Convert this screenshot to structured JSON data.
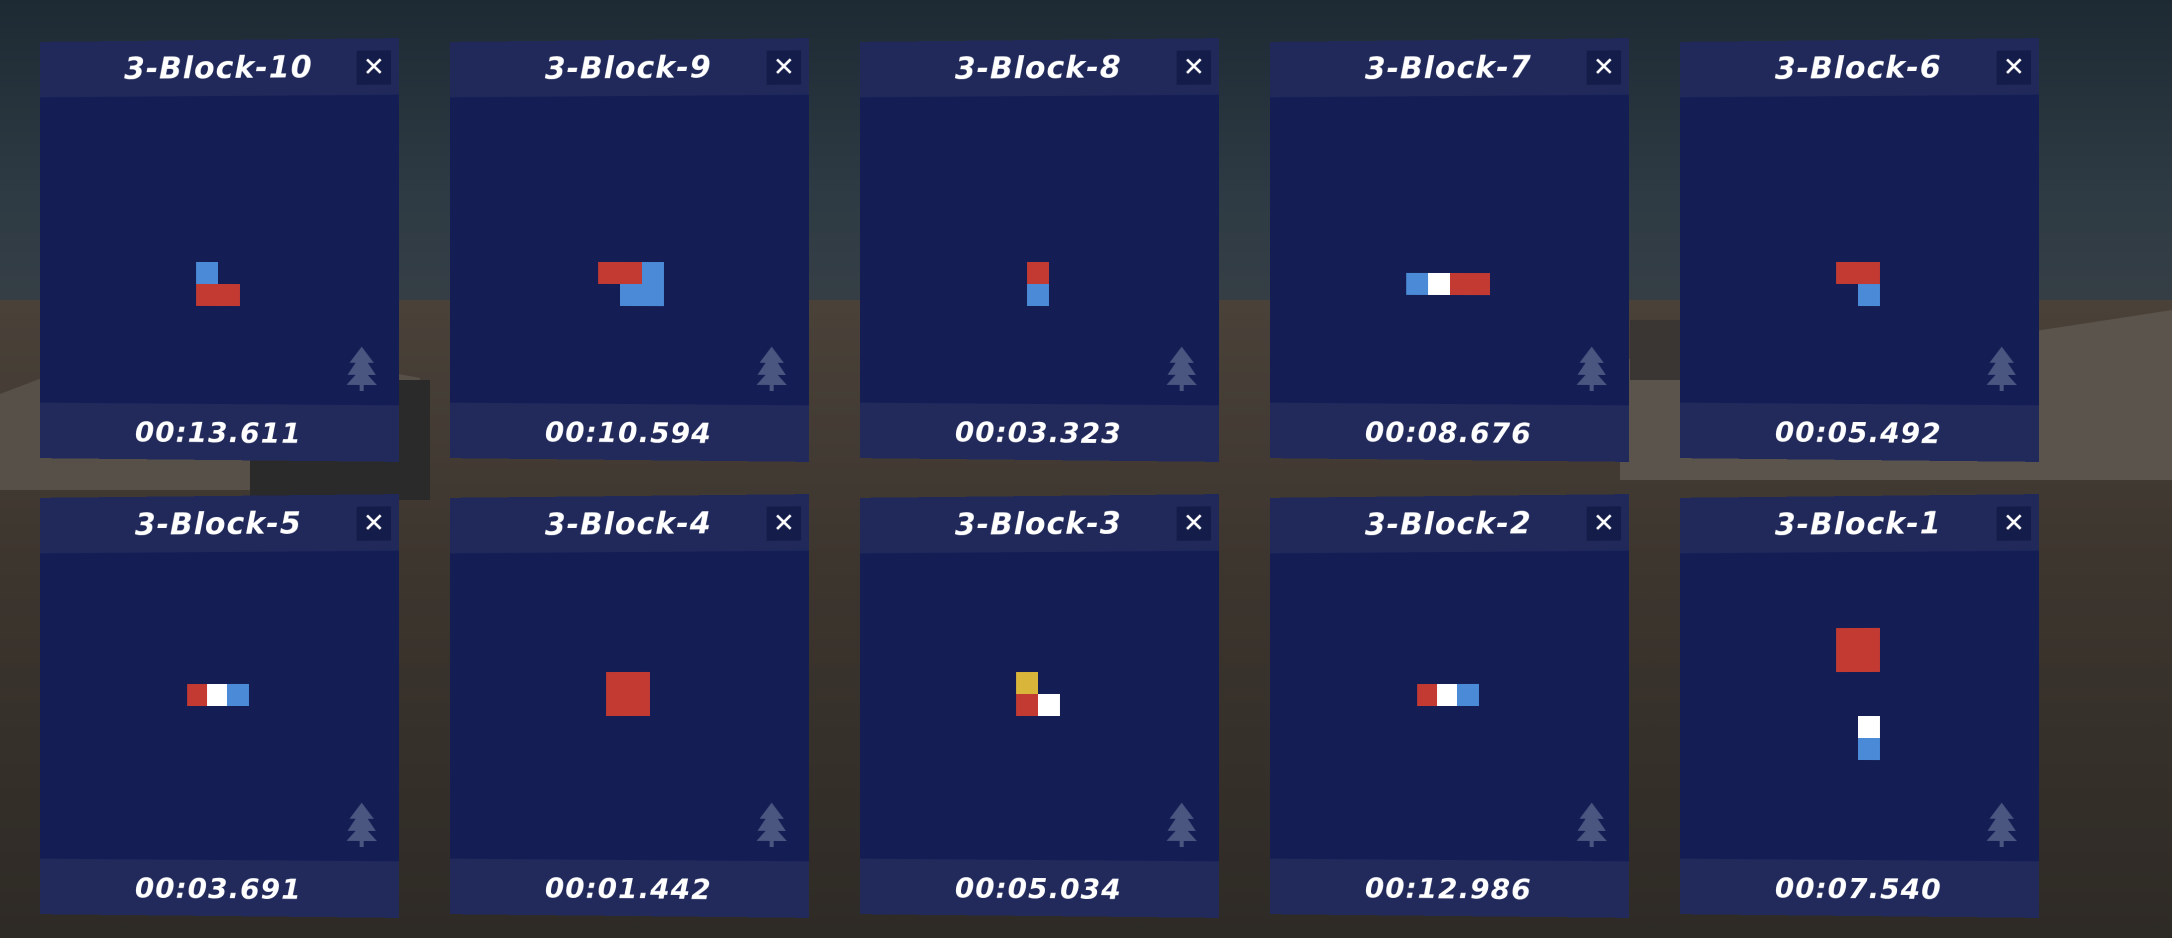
{
  "colors": {
    "panel_header": "#20295a",
    "panel_body": "#141e55",
    "panel_footer": "#222a5c",
    "red": "#c23a32",
    "blue": "#4a8ad6",
    "white": "#ffffff",
    "yellow": "#d9b53a"
  },
  "close_label": "✕",
  "cards": [
    {
      "title": "3-Block-10",
      "time": "00:13.611"
    },
    {
      "title": "3-Block-9",
      "time": "00:10.594"
    },
    {
      "title": "3-Block-8",
      "time": "00:03.323"
    },
    {
      "title": "3-Block-7",
      "time": "00:08.676"
    },
    {
      "title": "3-Block-6",
      "time": "00:05.492"
    },
    {
      "title": "3-Block-5",
      "time": "00:03.691"
    },
    {
      "title": "3-Block-4",
      "time": "00:01.442"
    },
    {
      "title": "3-Block-3",
      "time": "00:05.034"
    },
    {
      "title": "3-Block-2",
      "time": "00:12.986"
    },
    {
      "title": "3-Block-1",
      "time": "00:07.540"
    }
  ]
}
